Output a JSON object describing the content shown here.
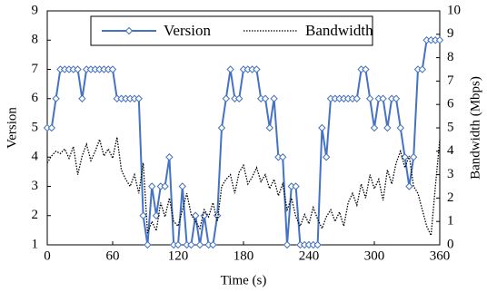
{
  "chart_data": {
    "type": "line",
    "xlabel": "Time (s)",
    "ylabel": "Version",
    "y2label": "Bandwidth (Mbps)",
    "x": [
      0,
      4,
      8,
      12,
      16,
      20,
      24,
      28,
      32,
      36,
      40,
      44,
      48,
      52,
      56,
      60,
      64,
      68,
      72,
      76,
      80,
      84,
      88,
      92,
      96,
      100,
      104,
      108,
      112,
      116,
      120,
      124,
      128,
      132,
      136,
      140,
      144,
      148,
      152,
      156,
      160,
      164,
      168,
      172,
      176,
      180,
      184,
      188,
      192,
      196,
      200,
      204,
      208,
      212,
      216,
      220,
      224,
      228,
      232,
      236,
      240,
      244,
      248,
      252,
      256,
      260,
      264,
      268,
      272,
      276,
      280,
      284,
      288,
      292,
      296,
      300,
      304,
      308,
      312,
      316,
      320,
      324,
      328,
      332,
      336,
      340,
      344,
      348,
      352,
      356,
      360
    ],
    "series": [
      {
        "name": "Version",
        "color": "#4472c4",
        "axis": "y",
        "values": [
          5,
          5,
          6,
          7,
          7,
          7,
          7,
          7,
          6,
          7,
          7,
          7,
          7,
          7,
          7,
          7,
          6,
          6,
          6,
          6,
          6,
          6,
          2,
          1,
          3,
          2,
          3,
          3,
          4,
          1,
          1,
          3,
          1,
          1,
          2,
          1,
          2,
          1,
          1,
          2,
          5,
          6,
          7,
          6,
          6,
          7,
          7,
          7,
          7,
          6,
          6,
          5,
          6,
          4,
          4,
          1,
          3,
          3,
          1,
          1,
          1,
          1,
          1,
          5,
          4,
          6,
          6,
          6,
          6,
          6,
          6,
          6,
          7,
          7,
          6,
          5,
          6,
          6,
          5,
          6,
          6,
          5,
          4,
          3,
          4,
          7,
          7,
          8,
          8,
          8,
          8
        ]
      },
      {
        "name": "Bandwidth",
        "color": "#000000",
        "axis": "y2",
        "values": [
          3.5,
          3.8,
          4.0,
          3.9,
          4.1,
          3.7,
          4.2,
          3.0,
          3.8,
          4.3,
          3.6,
          4.0,
          4.5,
          3.8,
          4.1,
          3.7,
          4.6,
          3.2,
          2.8,
          2.5,
          3.0,
          2.2,
          3.5,
          0.5,
          1.0,
          0.6,
          1.8,
          1.2,
          2.0,
          1.0,
          0.8,
          1.5,
          2.2,
          1.3,
          1.0,
          0.7,
          1.5,
          1.2,
          1.8,
          1.0,
          2.5,
          2.8,
          3.0,
          2.2,
          3.1,
          3.4,
          2.6,
          2.9,
          3.3,
          2.7,
          3.0,
          2.4,
          2.8,
          2.1,
          2.6,
          1.5,
          2.0,
          1.2,
          0.8,
          1.3,
          0.9,
          1.6,
          1.1,
          0.7,
          1.2,
          1.5,
          1.0,
          1.4,
          0.8,
          1.8,
          2.2,
          1.7,
          2.6,
          2.0,
          3.0,
          2.4,
          2.8,
          1.9,
          3.2,
          2.6,
          3.5,
          4.0,
          3.3,
          3.8,
          2.5,
          2.2,
          1.5,
          0.8,
          0.4,
          2.5,
          4.5
        ]
      }
    ],
    "xlim": [
      0,
      360
    ],
    "xticks": [
      0,
      60,
      120,
      180,
      240,
      300,
      360
    ],
    "ylim": [
      1,
      9
    ],
    "yticks": [
      1,
      2,
      3,
      4,
      5,
      6,
      7,
      8,
      9
    ],
    "y2lim": [
      0,
      10
    ],
    "y2ticks": [
      0,
      1,
      2,
      3,
      4,
      5,
      6,
      7,
      8,
      9,
      10
    ],
    "legend": "top",
    "grid": false
  }
}
